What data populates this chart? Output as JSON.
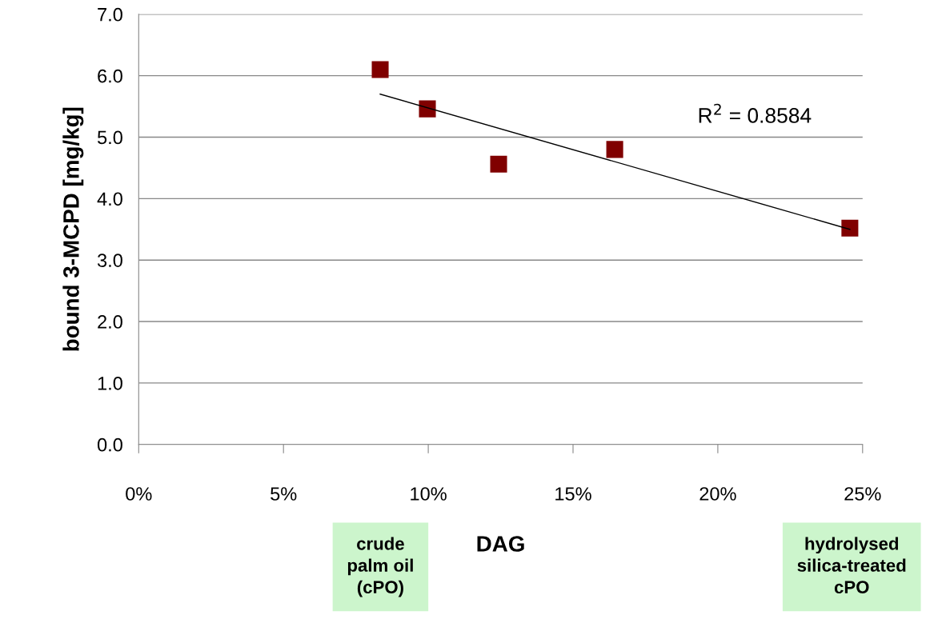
{
  "chart_data": {
    "type": "scatter",
    "xlabel": "DAG",
    "ylabel": "bound 3-MCPD [mg/kg]",
    "series": [
      {
        "color": "#800000",
        "marker": "square",
        "x": [
          8.34,
          9.97,
          12.43,
          16.44,
          24.56
        ],
        "values": [
          6.1,
          5.46,
          4.56,
          4.8,
          3.52
        ]
      },
      {
        "type": "line",
        "color": "#000000",
        "marker": "none",
        "x": [
          8.34,
          24.56
        ],
        "values": [
          5.7,
          3.5
        ]
      }
    ],
    "xlim": [
      0,
      25
    ],
    "xticks": [
      {
        "value": 0,
        "label": "0%"
      },
      {
        "value": 5,
        "label": "5%"
      },
      {
        "value": 10,
        "label": "10%"
      },
      {
        "value": 15,
        "label": "15%"
      },
      {
        "value": 20,
        "label": "20%"
      },
      {
        "value": 25,
        "label": "25%"
      }
    ],
    "ylim": [
      0,
      7
    ],
    "yticks": [
      {
        "value": 0,
        "label": "0.0"
      },
      {
        "value": 1,
        "label": "1.0"
      },
      {
        "value": 2,
        "label": "2.0"
      },
      {
        "value": 3,
        "label": "3.0"
      },
      {
        "value": 4,
        "label": "4.0"
      },
      {
        "value": 5,
        "label": "5.0"
      },
      {
        "value": 6,
        "label": "6.0"
      },
      {
        "value": 7,
        "label": "7.0"
      }
    ],
    "grid": "y",
    "annotations": [
      "R$^{2}$ = 0.8584",
      "crude\npalm oil\n(cPO)",
      "hydrolysed\nsilica-treated\ncPO"
    ]
  }
}
